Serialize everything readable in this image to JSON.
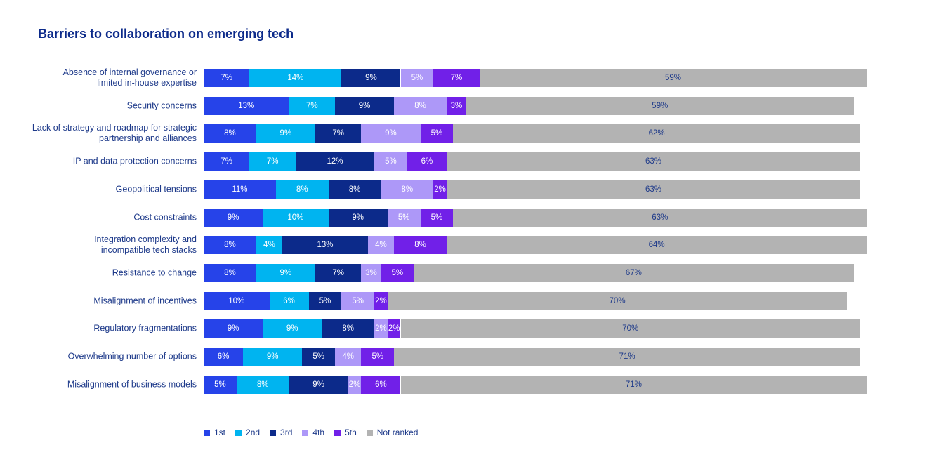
{
  "chart_data": {
    "type": "bar",
    "orientation": "horizontal",
    "stacked": true,
    "title": "Barriers to collaboration on emerging tech",
    "categories": [
      "Absence of internal governance or\nlimited in-house expertise",
      "Security concerns",
      "Lack of strategy and roadmap for strategic\npartnership and alliances",
      "IP and data protection concerns",
      "Geopolitical tensions",
      "Cost constraints",
      "Integration complexity and\nincompatible tech stacks",
      "Resistance to change",
      "Misalignment of incentives",
      "Regulatory fragmentations",
      "Overwhelming number of options",
      "Misalignment of business models"
    ],
    "series": [
      {
        "name": "1st",
        "color": "#2643e9",
        "values": [
          7,
          13,
          8,
          7,
          11,
          9,
          8,
          8,
          10,
          9,
          6,
          5
        ]
      },
      {
        "name": "2nd",
        "color": "#00b4f0",
        "values": [
          14,
          7,
          9,
          7,
          8,
          10,
          4,
          9,
          6,
          9,
          9,
          8
        ]
      },
      {
        "name": "3rd",
        "color": "#0c2a8a",
        "values": [
          9,
          9,
          7,
          12,
          8,
          9,
          13,
          7,
          5,
          8,
          5,
          9
        ]
      },
      {
        "name": "4th",
        "color": "#ad98f8",
        "values": [
          5,
          8,
          9,
          5,
          8,
          5,
          4,
          3,
          5,
          2,
          4,
          2
        ]
      },
      {
        "name": "5th",
        "color": "#7120e8",
        "values": [
          7,
          3,
          5,
          6,
          2,
          5,
          8,
          5,
          2,
          2,
          5,
          6
        ]
      },
      {
        "name": "Not ranked",
        "color": "#b3b3b3",
        "values": [
          59,
          59,
          62,
          63,
          63,
          63,
          64,
          67,
          70,
          70,
          71,
          71
        ]
      }
    ],
    "value_suffix": "%",
    "legend_position": "bottom-left",
    "grid": false
  }
}
